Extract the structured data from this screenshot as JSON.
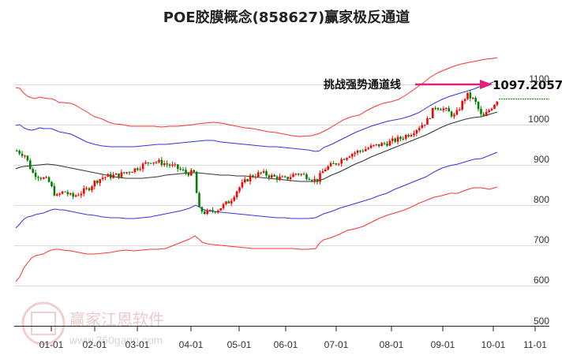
{
  "title": "POE胶膜概念(858627)赢家极反通道",
  "watermark": {
    "brand": "赢家江恩软件",
    "url": "www.360gann.com",
    "seal_chars": [
      "江",
      "赢",
      "恩",
      "家"
    ]
  },
  "annotation": {
    "label": "挑战强势通道线",
    "value": "1097.2057",
    "arrow_color": "#e0207a"
  },
  "colors": {
    "up_candle": "#ff0000",
    "down_candle": "#008000",
    "outer_band": "#ff3333",
    "inner_band": "#3333ee",
    "mid_line": "#333333",
    "grid": "#dddddd",
    "last_price_line": "#009900"
  },
  "chart_data": {
    "type": "candlestick",
    "title": "POE胶膜概念(858627)赢家极反通道",
    "xlabel": "",
    "ylabel": "",
    "ylim": [
      500,
      1150
    ],
    "y_ticks": [
      500,
      600,
      700,
      800,
      900,
      1000,
      1100
    ],
    "x_ticks": [
      "01-01",
      "02-01",
      "03-01",
      "04-01",
      "05-01",
      "06-01",
      "07-01",
      "08-01",
      "09-01",
      "10-01",
      "11-01"
    ],
    "grid": true,
    "legend": null,
    "annotations": [
      {
        "text": "挑战强势通道线",
        "value": 1097.2057
      }
    ],
    "series": [
      {
        "name": "outer_upper_band",
        "color": "red",
        "points": [
          [
            20,
            1065
          ],
          [
            30,
            1060
          ],
          [
            40,
            1040
          ],
          [
            60,
            1035
          ],
          [
            80,
            1030
          ],
          [
            100,
            1025
          ],
          [
            130,
            985
          ],
          [
            150,
            978
          ],
          [
            180,
            978
          ],
          [
            200,
            975
          ],
          [
            230,
            976
          ],
          [
            250,
            985
          ],
          [
            275,
            995
          ],
          [
            300,
            990
          ],
          [
            330,
            980
          ],
          [
            360,
            975
          ],
          [
            380,
            968
          ],
          [
            410,
            970
          ],
          [
            440,
            990
          ],
          [
            470,
            1005
          ],
          [
            500,
            1020
          ],
          [
            520,
            1040
          ],
          [
            540,
            1070
          ],
          [
            560,
            1090
          ],
          [
            580,
            1100
          ],
          [
            600,
            1115
          ],
          [
            630,
            1150
          ]
        ]
      },
      {
        "name": "inner_upper_band",
        "color": "blue",
        "points": [
          [
            20,
            995
          ],
          [
            30,
            995
          ],
          [
            40,
            985
          ],
          [
            60,
            988
          ],
          [
            80,
            980
          ],
          [
            100,
            965
          ],
          [
            130,
            945
          ],
          [
            160,
            935
          ],
          [
            180,
            935
          ],
          [
            200,
            938
          ],
          [
            230,
            942
          ],
          [
            250,
            955
          ],
          [
            275,
            960
          ],
          [
            300,
            955
          ],
          [
            330,
            950
          ],
          [
            360,
            945
          ],
          [
            380,
            930
          ],
          [
            405,
            928
          ],
          [
            420,
            940
          ],
          [
            445,
            965
          ],
          [
            470,
            980
          ],
          [
            500,
            985
          ],
          [
            520,
            1000
          ],
          [
            545,
            1030
          ],
          [
            565,
            1050
          ],
          [
            590,
            1070
          ],
          [
            625,
            1090
          ]
        ]
      },
      {
        "name": "middle_line",
        "color": "black",
        "points": [
          [
            20,
            880
          ],
          [
            30,
            890
          ],
          [
            60,
            895
          ],
          [
            90,
            885
          ],
          [
            120,
            870
          ],
          [
            150,
            860
          ],
          [
            180,
            845
          ],
          [
            200,
            840
          ],
          [
            230,
            850
          ],
          [
            255,
            855
          ],
          [
            280,
            850
          ],
          [
            310,
            846
          ],
          [
            340,
            843
          ],
          [
            360,
            840
          ],
          [
            390,
            835
          ],
          [
            400,
            835
          ],
          [
            420,
            845
          ],
          [
            445,
            865
          ],
          [
            470,
            885
          ],
          [
            500,
            905
          ],
          [
            530,
            930
          ],
          [
            560,
            960
          ],
          [
            590,
            990
          ],
          [
            610,
            1005
          ],
          [
            630,
            1015
          ]
        ]
      },
      {
        "name": "inner_lower_band",
        "color": "blue",
        "points": [
          [
            20,
            740
          ],
          [
            30,
            755
          ],
          [
            50,
            785
          ],
          [
            70,
            790
          ],
          [
            90,
            785
          ],
          [
            120,
            775
          ],
          [
            150,
            765
          ],
          [
            180,
            770
          ],
          [
            200,
            775
          ],
          [
            230,
            790
          ],
          [
            250,
            803
          ],
          [
            262,
            785
          ],
          [
            300,
            775
          ],
          [
            330,
            770
          ],
          [
            360,
            760
          ],
          [
            395,
            755
          ],
          [
            420,
            770
          ],
          [
            450,
            790
          ],
          [
            480,
            805
          ],
          [
            510,
            825
          ],
          [
            540,
            840
          ],
          [
            560,
            860
          ],
          [
            580,
            870
          ],
          [
            600,
            880
          ],
          [
            630,
            890
          ]
        ]
      },
      {
        "name": "outer_lower_band",
        "color": "red",
        "points": [
          [
            20,
            610
          ],
          [
            30,
            640
          ],
          [
            45,
            670
          ],
          [
            60,
            685
          ],
          [
            80,
            690
          ],
          [
            100,
            690
          ],
          [
            130,
            680
          ],
          [
            150,
            683
          ],
          [
            180,
            685
          ],
          [
            210,
            690
          ],
          [
            240,
            710
          ],
          [
            250,
            720
          ],
          [
            260,
            700
          ],
          [
            290,
            695
          ],
          [
            320,
            690
          ],
          [
            340,
            688
          ],
          [
            380,
            690
          ],
          [
            400,
            690
          ],
          [
            420,
            710
          ],
          [
            450,
            735
          ],
          [
            480,
            760
          ],
          [
            510,
            770
          ],
          [
            530,
            778
          ],
          [
            560,
            790
          ],
          [
            590,
            800
          ],
          [
            610,
            807
          ],
          [
            630,
            810
          ]
        ]
      },
      {
        "name": "price_close",
        "color": "candles",
        "points": [
          [
            20,
            935
          ],
          [
            30,
            925
          ],
          [
            40,
            880
          ],
          [
            60,
            860
          ],
          [
            70,
            820
          ],
          [
            80,
            835
          ],
          [
            90,
            820
          ],
          [
            100,
            830
          ],
          [
            110,
            840
          ],
          [
            120,
            860
          ],
          [
            130,
            870
          ],
          [
            150,
            875
          ],
          [
            170,
            890
          ],
          [
            190,
            910
          ],
          [
            205,
            905
          ],
          [
            220,
            895
          ],
          [
            235,
            880
          ],
          [
            245,
            880
          ],
          [
            250,
            790
          ],
          [
            260,
            780
          ],
          [
            275,
            790
          ],
          [
            290,
            810
          ],
          [
            300,
            840
          ],
          [
            315,
            870
          ],
          [
            330,
            880
          ],
          [
            345,
            870
          ],
          [
            360,
            865
          ],
          [
            375,
            880
          ],
          [
            390,
            870
          ],
          [
            400,
            860
          ],
          [
            410,
            890
          ],
          [
            425,
            905
          ],
          [
            440,
            925
          ],
          [
            455,
            935
          ],
          [
            470,
            945
          ],
          [
            490,
            955
          ],
          [
            505,
            965
          ],
          [
            520,
            980
          ],
          [
            530,
            995
          ],
          [
            540,
            1010
          ],
          [
            550,
            1045
          ],
          [
            560,
            1040
          ],
          [
            575,
            1020
          ],
          [
            590,
            1075
          ],
          [
            600,
            1060
          ],
          [
            610,
            1015
          ],
          [
            620,
            1040
          ],
          [
            630,
            1065
          ]
        ]
      }
    ],
    "last_value": 1065
  }
}
